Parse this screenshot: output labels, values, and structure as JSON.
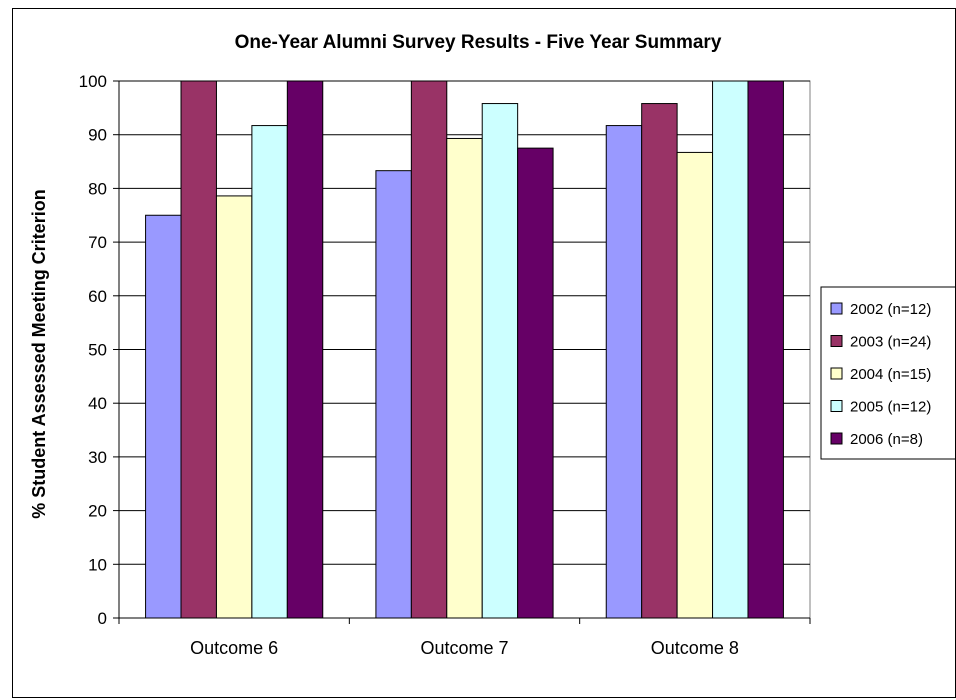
{
  "chart_data": {
    "type": "bar",
    "title": "One-Year Alumni Survey Results - Five Year Summary",
    "xlabel": "",
    "ylabel": "% Student Assessed Meeting Criterion",
    "ylim": [
      0,
      100
    ],
    "yticks": [
      0,
      10,
      20,
      30,
      40,
      50,
      60,
      70,
      80,
      90,
      100
    ],
    "grid": true,
    "legend_position": "right",
    "categories": [
      "Outcome 6",
      "Outcome 7",
      "Outcome 8"
    ],
    "series": [
      {
        "name": "2002 (n=12)",
        "color": "#9999ff",
        "values": [
          75.0,
          83.3,
          91.7
        ]
      },
      {
        "name": "2003  (n=24)",
        "color": "#993366",
        "values": [
          100,
          100,
          95.8
        ]
      },
      {
        "name": "2004  (n=15)",
        "color": "#ffffcc",
        "values": [
          78.6,
          89.3,
          86.7
        ]
      },
      {
        "name": "2005 (n=12)",
        "color": "#ccffff",
        "values": [
          91.7,
          95.8,
          100
        ]
      },
      {
        "name": "2006 (n=8)",
        "color": "#660066",
        "values": [
          100,
          87.5,
          100
        ]
      }
    ]
  }
}
